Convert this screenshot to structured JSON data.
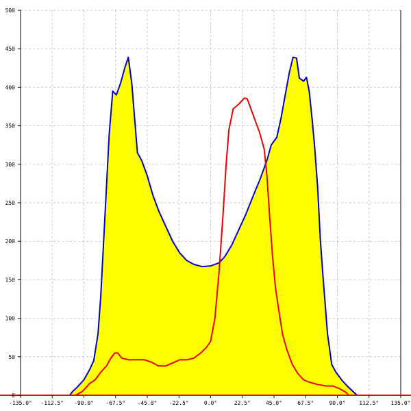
{
  "chart_data": {
    "type": "area",
    "title": "",
    "xlabel": "",
    "ylabel": "",
    "xlim": [
      -135,
      135
    ],
    "ylim": [
      0,
      500
    ],
    "grid": true,
    "x_ticks": [
      -135,
      -112.5,
      -90,
      -67.5,
      -45,
      -22.5,
      0,
      22.5,
      45,
      67.5,
      90,
      112.5,
      135
    ],
    "x_tick_labels": [
      "-135.0°",
      "-112.5°",
      "-90.0°",
      "-67.5°",
      "-45.0°",
      "-22.5°",
      "0.0°",
      "22.5°",
      "45.0°",
      "67.5°",
      "90.0°",
      "112.5°",
      "135.0°"
    ],
    "y_ticks": [
      0,
      50,
      100,
      150,
      200,
      250,
      300,
      350,
      400,
      450,
      500
    ],
    "y_tick_labels": [
      "0",
      "50",
      "100",
      "150",
      "200",
      "250",
      "300",
      "350",
      "400",
      "450",
      "500"
    ],
    "colors": {
      "fill": "#ffff00",
      "series_blue": "#0000cc",
      "series_red": "#ee0000",
      "grid": "#c8c8c8",
      "axis": "#000000",
      "baseline": "#ee0000"
    },
    "series": [
      {
        "key": "blue",
        "filled": true,
        "points": [
          [
            -100,
            0
          ],
          [
            -98,
            5
          ],
          [
            -95,
            10
          ],
          [
            -90,
            20
          ],
          [
            -86,
            33
          ],
          [
            -83,
            45
          ],
          [
            -80,
            80
          ],
          [
            -78,
            130
          ],
          [
            -76,
            200
          ],
          [
            -74,
            270
          ],
          [
            -72,
            340
          ],
          [
            -69.5,
            395
          ],
          [
            -67,
            390
          ],
          [
            -64,
            405
          ],
          [
            -61,
            425
          ],
          [
            -58.5,
            439
          ],
          [
            -56,
            405
          ],
          [
            -54,
            360
          ],
          [
            -52,
            315
          ],
          [
            -49,
            305
          ],
          [
            -45,
            285
          ],
          [
            -41,
            260
          ],
          [
            -37,
            240
          ],
          [
            -32,
            220
          ],
          [
            -27,
            200
          ],
          [
            -22,
            185
          ],
          [
            -17,
            175
          ],
          [
            -12,
            170
          ],
          [
            -6,
            167
          ],
          [
            0,
            168
          ],
          [
            6,
            172
          ],
          [
            10,
            180
          ],
          [
            15,
            195
          ],
          [
            20,
            215
          ],
          [
            25,
            235
          ],
          [
            30,
            258
          ],
          [
            35,
            280
          ],
          [
            40,
            305
          ],
          [
            43,
            325
          ],
          [
            47,
            335
          ],
          [
            50,
            360
          ],
          [
            53,
            390
          ],
          [
            56,
            420
          ],
          [
            58.5,
            439
          ],
          [
            61,
            438
          ],
          [
            63,
            412
          ],
          [
            66,
            408
          ],
          [
            68,
            413
          ],
          [
            70,
            395
          ],
          [
            72,
            360
          ],
          [
            74,
            320
          ],
          [
            76,
            270
          ],
          [
            78,
            200
          ],
          [
            80,
            150
          ],
          [
            83,
            80
          ],
          [
            86,
            40
          ],
          [
            89,
            30
          ],
          [
            93,
            20
          ],
          [
            97,
            12
          ],
          [
            101,
            5
          ],
          [
            104,
            0
          ]
        ]
      },
      {
        "key": "red",
        "filled": false,
        "points": [
          [
            -96,
            0
          ],
          [
            -91,
            5
          ],
          [
            -86,
            15
          ],
          [
            -82,
            20
          ],
          [
            -78,
            30
          ],
          [
            -74,
            38
          ],
          [
            -71,
            48
          ],
          [
            -68,
            55
          ],
          [
            -66,
            55
          ],
          [
            -63,
            48
          ],
          [
            -58,
            46
          ],
          [
            -52,
            46
          ],
          [
            -47,
            46
          ],
          [
            -42,
            43
          ],
          [
            -37,
            38
          ],
          [
            -32,
            38
          ],
          [
            -27,
            42
          ],
          [
            -22,
            46
          ],
          [
            -17,
            46
          ],
          [
            -12,
            48
          ],
          [
            -7,
            55
          ],
          [
            -3,
            62
          ],
          [
            0,
            70
          ],
          [
            3,
            100
          ],
          [
            6,
            160
          ],
          [
            9,
            240
          ],
          [
            11,
            300
          ],
          [
            13,
            345
          ],
          [
            16,
            372
          ],
          [
            20,
            378
          ],
          [
            24,
            386
          ],
          [
            26,
            385
          ],
          [
            29,
            370
          ],
          [
            32,
            355
          ],
          [
            35,
            340
          ],
          [
            38,
            320
          ],
          [
            40,
            285
          ],
          [
            42,
            230
          ],
          [
            44,
            180
          ],
          [
            46,
            140
          ],
          [
            48,
            115
          ],
          [
            51,
            80
          ],
          [
            54,
            60
          ],
          [
            58,
            40
          ],
          [
            62,
            28
          ],
          [
            66,
            20
          ],
          [
            70,
            17
          ],
          [
            76,
            14
          ],
          [
            82,
            12
          ],
          [
            87,
            12
          ],
          [
            92,
            8
          ],
          [
            96,
            4
          ],
          [
            98,
            0
          ]
        ]
      }
    ]
  }
}
